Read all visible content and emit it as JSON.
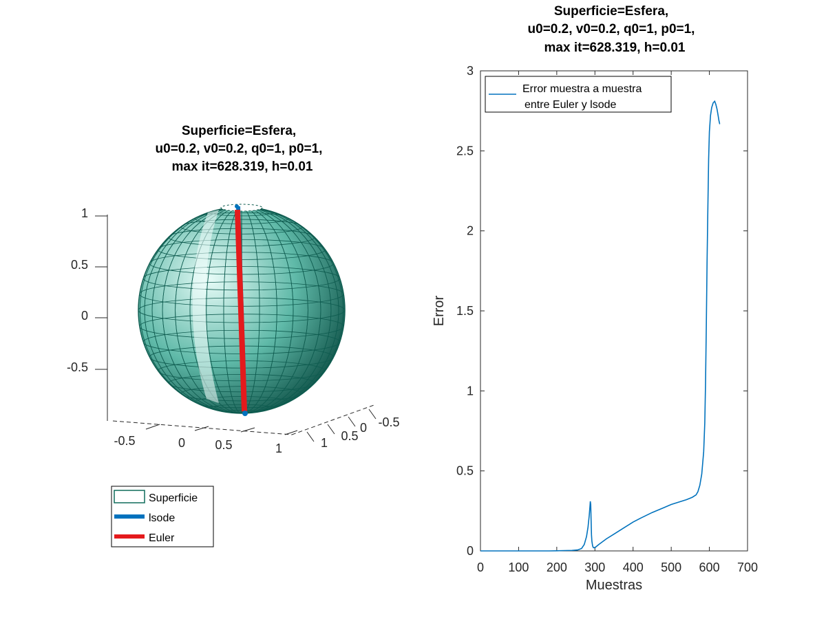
{
  "chart_data": [
    {
      "type": "surface3d",
      "title_lines": [
        "Superficie=Esfera,",
        "u0=0.2, v0=0.2, q0=1, p0=1,",
        "max it=628.319, h=0.01"
      ],
      "surface": "sphere",
      "z_ticks": [
        "1",
        "0.5",
        "0",
        "-0.5"
      ],
      "x_ticks": [
        "-0.5",
        "0",
        "0.5",
        "1"
      ],
      "y_ticks": [
        "1",
        "0.5",
        "0",
        "-0.5"
      ],
      "xlim": [
        -1,
        1
      ],
      "ylim": [
        -1,
        1
      ],
      "zlim": [
        -1,
        1
      ],
      "legend_position": "below",
      "legend": [
        {
          "label": "Superficie",
          "color": "#0f6b5a",
          "style": "patch"
        },
        {
          "label": "lsode",
          "color": "#0072bd",
          "style": "line"
        },
        {
          "label": "Euler",
          "color": "#e41a1c",
          "style": "line"
        }
      ],
      "colors": {
        "surface_edge": "#0f5c50",
        "surface_face_dark": "#0d4f45",
        "surface_face_light": "#e6fbf7",
        "euler": "#e41a1c",
        "lsode": "#0072bd"
      }
    },
    {
      "type": "line",
      "title_lines": [
        "Superficie=Esfera,",
        "u0=0.2, v0=0.2, q0=1, p0=1,",
        "max it=628.319, h=0.01"
      ],
      "xlabel": "Muestras",
      "ylabel": "Error",
      "xlim": [
        0,
        700
      ],
      "ylim": [
        0,
        3
      ],
      "x_ticks": [
        "0",
        "100",
        "200",
        "300",
        "400",
        "500",
        "600",
        "700"
      ],
      "y_ticks": [
        "0",
        "0.5",
        "1",
        "1.5",
        "2",
        "2.5",
        "3"
      ],
      "legend_position": "top-left",
      "series": [
        {
          "name_lines": [
            "Error muestra a muestra",
            "entre Euler y lsode"
          ],
          "color": "#0072bd",
          "x": [
            0,
            20,
            40,
            60,
            80,
            100,
            120,
            140,
            160,
            180,
            200,
            220,
            240,
            255,
            265,
            272,
            278,
            282,
            285,
            287,
            288,
            289,
            290,
            291,
            292,
            294,
            296,
            298,
            300,
            310,
            330,
            350,
            380,
            400,
            420,
            450,
            480,
            500,
            520,
            540,
            555,
            565,
            570,
            575,
            580,
            585,
            588,
            590,
            592,
            594,
            596,
            598,
            600,
            603,
            606,
            610,
            614,
            617,
            620,
            623,
            625,
            627,
            628
          ],
          "y": [
            0,
            0,
            0,
            0,
            0,
            0,
            0,
            0,
            0,
            0,
            0.001,
            0.002,
            0.003,
            0.006,
            0.015,
            0.04,
            0.09,
            0.15,
            0.22,
            0.28,
            0.31,
            0.29,
            0.2,
            0.1,
            0.06,
            0.03,
            0.02,
            0.02,
            0.02,
            0.04,
            0.075,
            0.105,
            0.15,
            0.18,
            0.205,
            0.24,
            0.27,
            0.29,
            0.305,
            0.32,
            0.335,
            0.35,
            0.37,
            0.41,
            0.48,
            0.62,
            0.8,
            1.05,
            1.4,
            1.8,
            2.15,
            2.45,
            2.62,
            2.72,
            2.77,
            2.8,
            2.81,
            2.79,
            2.76,
            2.72,
            2.69,
            2.67,
            2.67
          ]
        }
      ]
    }
  ]
}
